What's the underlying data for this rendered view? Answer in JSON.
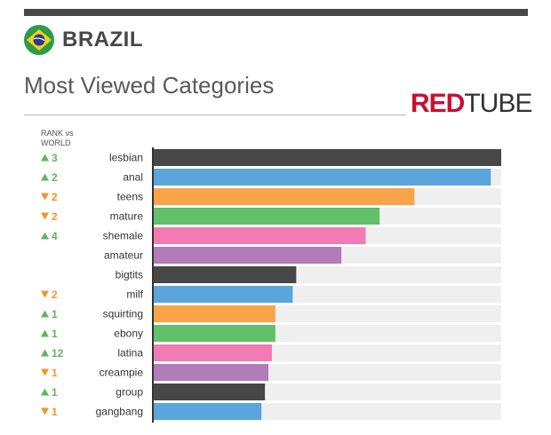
{
  "header": {
    "country": "BRAZIL",
    "subtitle": "Most Viewed Categories",
    "logo_red": "RED",
    "logo_dark": "TUBE",
    "rank_header_line1": "RANK vs",
    "rank_header_line2": "WORLD"
  },
  "colors": {
    "track": "#efefef",
    "axis": "#333333",
    "up": "#5cb85c",
    "down": "#f0952b",
    "palette": [
      "#474747",
      "#5aa5db",
      "#f9a34a",
      "#63c06a",
      "#f07cb3",
      "#b27cb8"
    ]
  },
  "chart_data": {
    "type": "bar",
    "orientation": "horizontal",
    "categories": [
      "lesbian",
      "anal",
      "teens",
      "mature",
      "shemale",
      "amateur",
      "bigtits",
      "milf",
      "squirting",
      "ebony",
      "latina",
      "creampie",
      "group",
      "gangbang"
    ],
    "values": [
      100,
      97,
      75,
      65,
      61,
      54,
      41,
      40,
      35,
      35,
      34,
      33,
      32,
      31
    ],
    "xlim": [
      0,
      100
    ],
    "ranks": [
      {
        "dir": "up",
        "label": "3"
      },
      {
        "dir": "up",
        "label": "2"
      },
      {
        "dir": "down",
        "label": "2"
      },
      {
        "dir": "down",
        "label": "2"
      },
      {
        "dir": "up",
        "label": "4"
      },
      {
        "dir": "none",
        "label": ""
      },
      {
        "dir": "none",
        "label": ""
      },
      {
        "dir": "down",
        "label": "2"
      },
      {
        "dir": "up",
        "label": "1"
      },
      {
        "dir": "up",
        "label": "1"
      },
      {
        "dir": "up",
        "label": "12"
      },
      {
        "dir": "down",
        "label": "1"
      },
      {
        "dir": "up",
        "label": "1"
      },
      {
        "dir": "down",
        "label": "1"
      }
    ]
  }
}
